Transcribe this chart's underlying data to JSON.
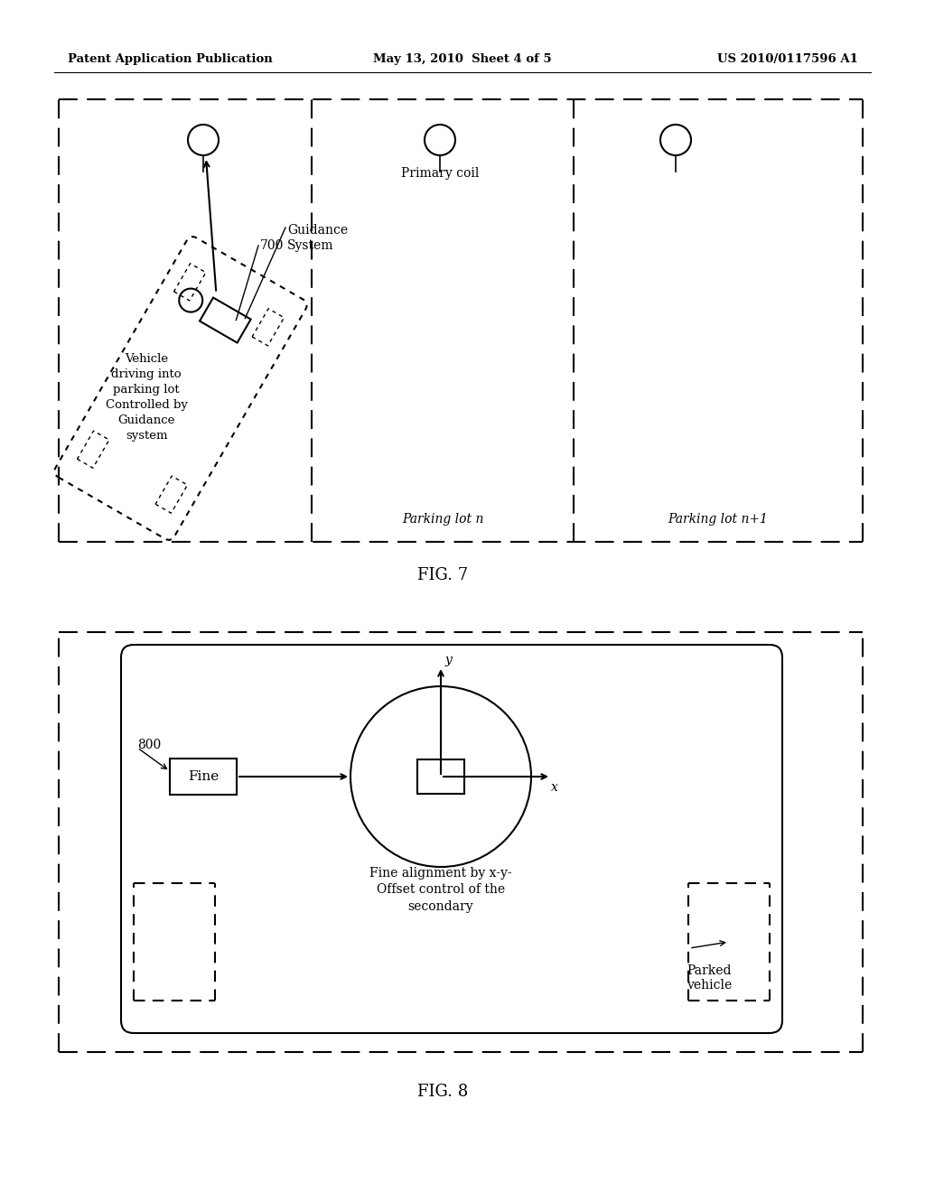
{
  "header_left": "Patent Application Publication",
  "header_mid": "May 13, 2010  Sheet 4 of 5",
  "header_right": "US 2010/0117596 A1",
  "fig7_label": "FIG. 7",
  "fig8_label": "FIG. 8",
  "bg_color": "#ffffff",
  "primary_coil_label": "Primary coil",
  "parking_lot_n_label": "Parking lot n",
  "parking_lot_n1_label": "Parking lot n+1",
  "guidance_label": "Guidance\nSystem",
  "num_700": "700",
  "vehicle_label": "Vehicle\ndriving into\nparking lot\nControlled by\nGuidance\nsystem",
  "fine_label": "Fine",
  "num_800": "800",
  "alignment_label": "Fine alignment by x-y-\nOffset control of the\nsecondary",
  "parked_label": "Parked\nvehicle"
}
